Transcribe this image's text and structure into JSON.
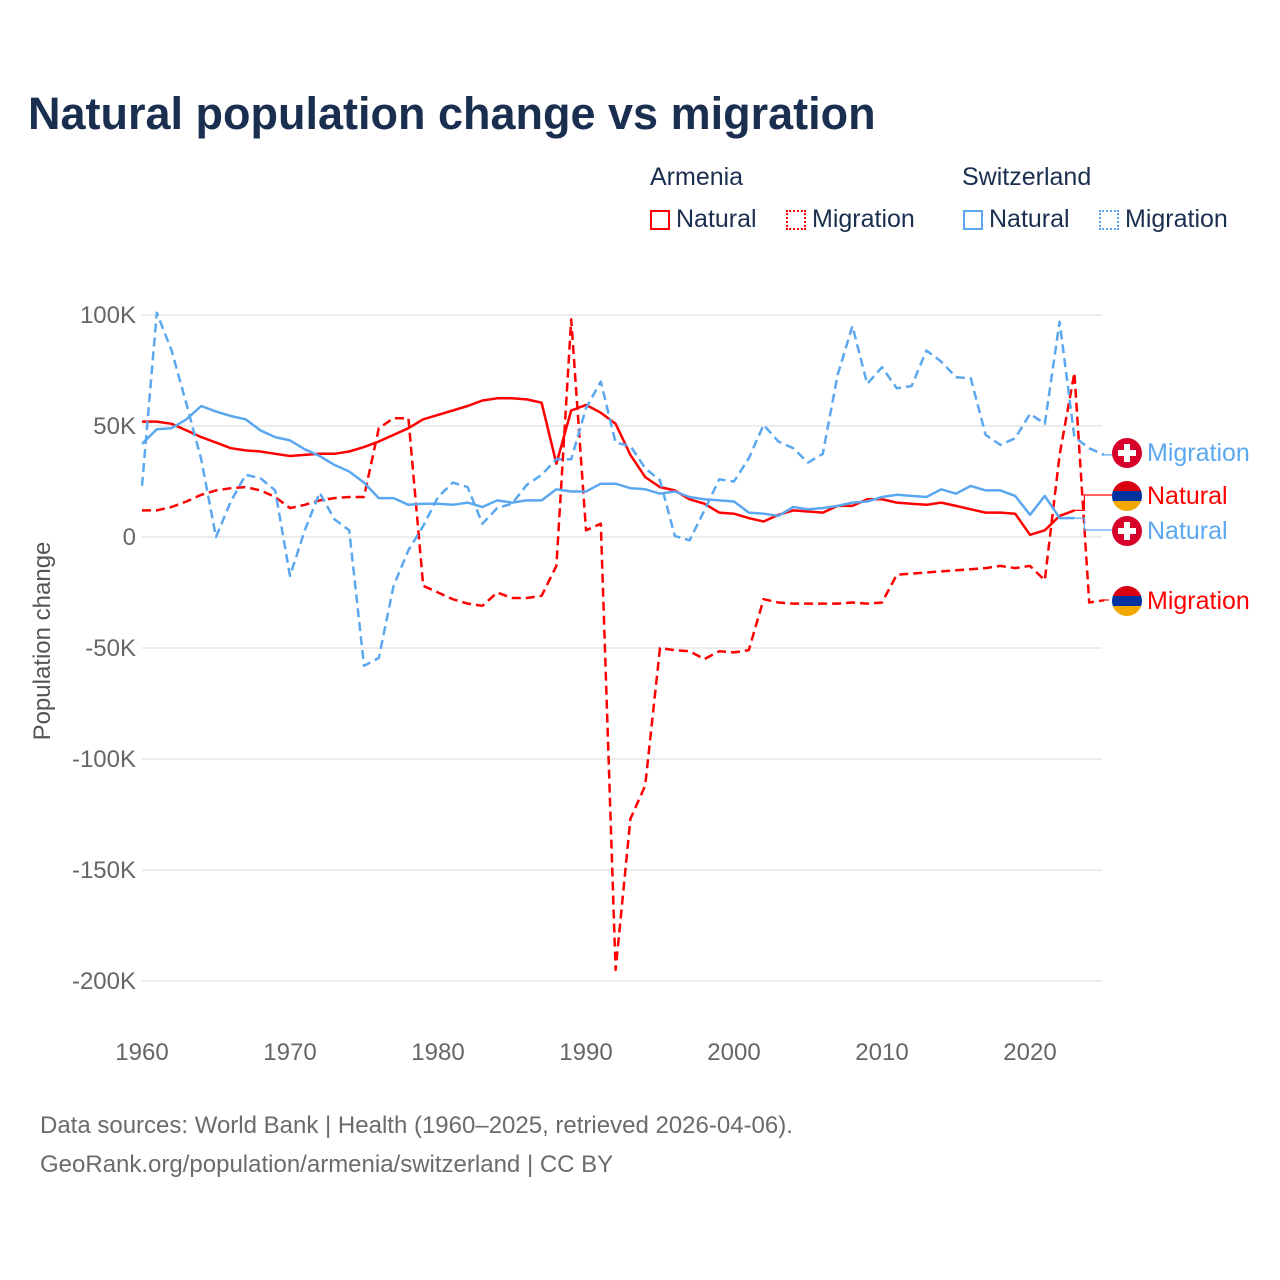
{
  "title": "Natural population change vs migration",
  "legend": {
    "groups": [
      {
        "name": "Armenia",
        "color": "#ff0000",
        "items": [
          "Natural",
          "Migration"
        ]
      },
      {
        "name": "Switzerland",
        "color": "#5ba8f0",
        "items": [
          "Natural",
          "Migration"
        ]
      }
    ]
  },
  "footer": {
    "line1": "Data sources: World Bank | Health (1960–2025, retrieved 2026-04-06).",
    "line2": "GeoRank.org/population/armenia/switzerland | CC BY"
  },
  "chart_data": {
    "type": "line",
    "title": "Natural population change vs migration",
    "xlabel": "",
    "ylabel": "Population change",
    "xlim": [
      1960,
      2025
    ],
    "ylim": [
      -200000,
      100000
    ],
    "x_ticks": [
      1960,
      1970,
      1980,
      1990,
      2000,
      2010,
      2020
    ],
    "y_ticks": [
      100000,
      50000,
      0,
      -50000,
      -100000,
      -150000,
      -200000
    ],
    "y_tick_labels": [
      "100K",
      "50K",
      "0",
      "-50K",
      "-100K",
      "-150K",
      "-200K"
    ],
    "grid": true,
    "start_year": 1960,
    "series": [
      {
        "name": "Natural",
        "country": "Armenia",
        "color": "#ff0000",
        "dash": false,
        "end_label": "Natural",
        "values": [
          52,
          52,
          51,
          48,
          45,
          42.5,
          40,
          39,
          38.5,
          37.5,
          36.5,
          37,
          37.5,
          37.5,
          38.5,
          40.5,
          43,
          46,
          49,
          53,
          55,
          57,
          59,
          61.5,
          62.5,
          62.5,
          62,
          60.5,
          33,
          57,
          59.5,
          56,
          51,
          37,
          27,
          22.5,
          21,
          17,
          15,
          11,
          10.5,
          8.5,
          7,
          10,
          12,
          11.5,
          11,
          14,
          14,
          17,
          17,
          15.5,
          15,
          14.5,
          15.5,
          14,
          12.5,
          11,
          11,
          10.5,
          1,
          3,
          9.5,
          12
        ]
      },
      {
        "name": "Migration",
        "country": "Armenia",
        "color": "#ff0000",
        "dash": true,
        "end_label": "Migration",
        "values": [
          12,
          12,
          13.5,
          16,
          19,
          21,
          22,
          22.5,
          21,
          18,
          13,
          14.5,
          16.5,
          17.5,
          18,
          18,
          49,
          53.5,
          53.5,
          -22,
          -25,
          -28,
          -30,
          -31,
          -25,
          -27.5,
          -27.5,
          -26.5,
          -13,
          98,
          3,
          6,
          -195,
          -127,
          -112,
          -50,
          -51,
          -51.5,
          -55,
          -51.5,
          -52,
          -51,
          -28,
          -29.5,
          -30,
          -30,
          -30,
          -30,
          -29.5,
          -30,
          -29.5,
          -17,
          -16.5,
          -16,
          -15.5,
          -15,
          -14.5,
          -14,
          -13,
          -14,
          -13,
          -19.5,
          37,
          74,
          -29.5,
          -28.5
        ]
      },
      {
        "name": "Natural",
        "country": "Switzerland",
        "color": "#5ba8f0",
        "dash": false,
        "end_label": "Natural",
        "values": [
          42,
          48.5,
          49,
          53,
          59,
          56.5,
          54.5,
          53,
          48,
          45,
          43.5,
          39.5,
          36.5,
          32.5,
          29.5,
          24.5,
          17.5,
          17.5,
          14.5,
          15,
          15,
          14.5,
          15.5,
          13.5,
          16.5,
          15.5,
          16.5,
          16.5,
          21.5,
          20.5,
          20.5,
          24,
          24,
          22,
          21.5,
          19.5,
          20.5,
          18,
          17,
          16.5,
          16,
          11,
          10.5,
          9.5,
          13.5,
          12.5,
          13,
          14,
          15.5,
          16,
          18,
          19,
          18.5,
          18,
          21.5,
          19.5,
          23,
          21,
          21,
          18.5,
          10,
          18.5,
          8.5,
          8.5
        ]
      },
      {
        "name": "Migration",
        "country": "Switzerland",
        "color": "#5ba8f0",
        "dash": true,
        "end_label": "Migration",
        "values": [
          23,
          101,
          84,
          60,
          35,
          0,
          16,
          28,
          26.5,
          21,
          -17.5,
          3,
          20,
          8,
          3,
          -58,
          -54.5,
          -22,
          -6,
          5,
          18,
          24.5,
          22.5,
          6,
          13,
          15,
          23.5,
          28,
          35,
          35,
          58,
          70,
          42.5,
          41,
          31,
          25.5,
          0.5,
          -1.5,
          12,
          26,
          25,
          35.5,
          50.5,
          43,
          40,
          33.5,
          37.5,
          73,
          95,
          69,
          76.5,
          67,
          68,
          84,
          79,
          72,
          71.5,
          46,
          41.5,
          44.5,
          55.5,
          51,
          97,
          45,
          40,
          37
        ]
      }
    ],
    "value_unit": "thousands"
  }
}
